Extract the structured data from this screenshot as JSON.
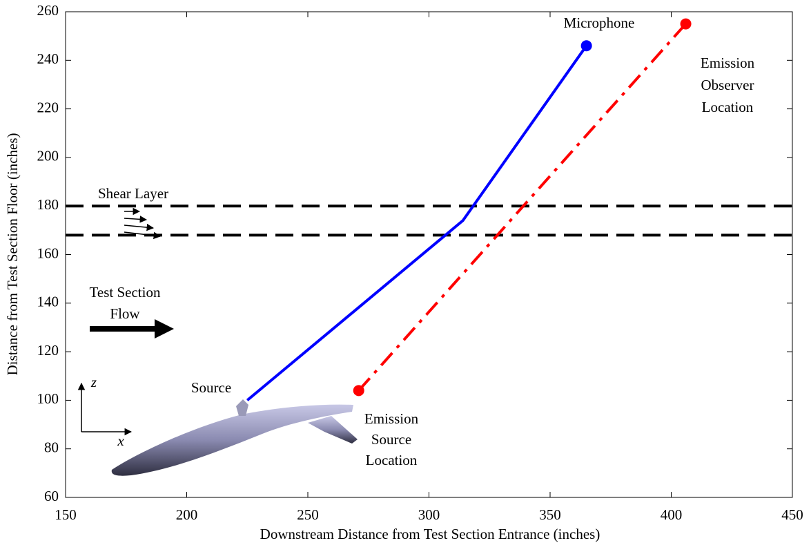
{
  "chart_data": {
    "type": "line",
    "xlabel": "Downstream Distance from Test Section Entrance (inches)",
    "ylabel": "Distance from Test Section Floor (inches)",
    "xlim": [
      150,
      450
    ],
    "ylim": [
      60,
      260
    ],
    "xticks": [
      150,
      200,
      250,
      300,
      350,
      400,
      450
    ],
    "yticks": [
      60,
      80,
      100,
      120,
      140,
      160,
      180,
      200,
      220,
      240,
      260
    ],
    "series": [
      {
        "color": "#0000ff",
        "style": "solid",
        "markers": "last",
        "x": [
          225,
          314,
          365
        ],
        "values": [
          100,
          174,
          246
        ]
      },
      {
        "color": "#ff0000",
        "style": "dashdot",
        "markers": "ends",
        "x": [
          271,
          406
        ],
        "values": [
          104,
          255
        ]
      }
    ],
    "hlines": [
      180,
      168
    ],
    "annotations": [
      [
        "Microphone"
      ],
      [
        "Emission",
        "Observer",
        "Location"
      ],
      [
        "Shear Layer"
      ],
      [
        "Test Section",
        "Flow"
      ],
      [
        "Source"
      ],
      [
        "Emission",
        "Source",
        "Location"
      ],
      [
        "z"
      ],
      [
        "x"
      ]
    ]
  }
}
